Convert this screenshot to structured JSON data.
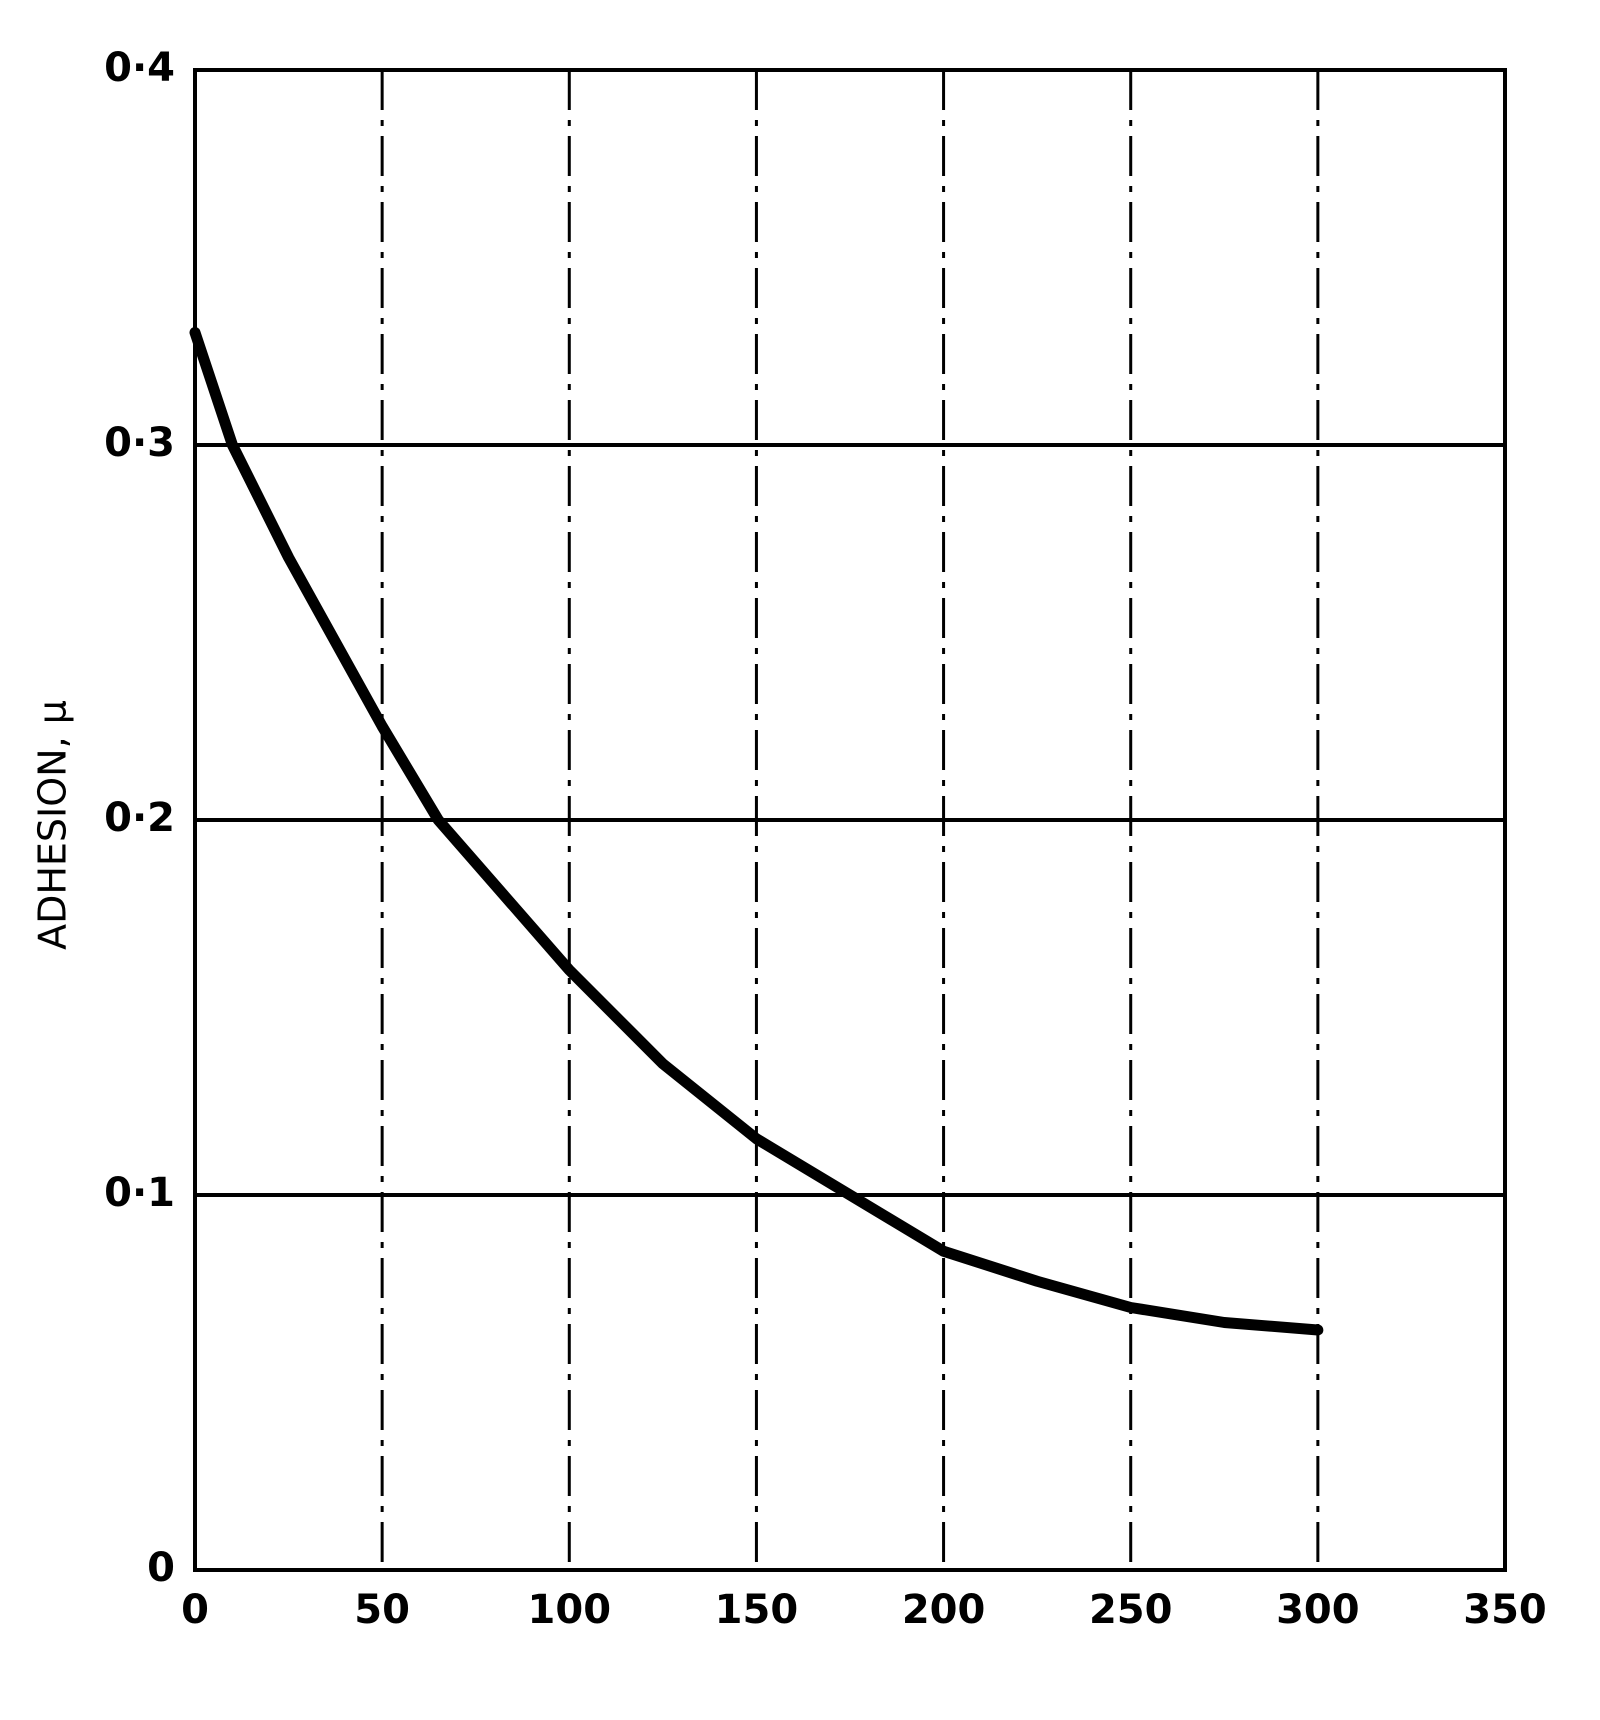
{
  "chart_data": {
    "type": "line",
    "y_label": "ADHESION, μ",
    "x": [
      0,
      10,
      25,
      50,
      65,
      100,
      125,
      150,
      175,
      200,
      225,
      250,
      275,
      300
    ],
    "series": [
      {
        "color": "#000000",
        "values": [
          0.33,
          0.3,
          0.27,
          0.225,
          0.2,
          0.16,
          0.135,
          0.115,
          0.1,
          0.085,
          0.077,
          0.07,
          0.066,
          0.064
        ]
      }
    ],
    "xlim": [
      0,
      350
    ],
    "xticks": [
      0,
      50,
      100,
      150,
      200,
      250,
      300,
      350
    ],
    "ylim": [
      0,
      0.4
    ],
    "yticks": [
      0,
      {
        "value": 0.1,
        "label": "0·1"
      },
      {
        "value": 0.2,
        "label": "0·2"
      },
      {
        "value": 0.3,
        "label": "0·3"
      },
      {
        "value": 0.4,
        "label": "0·4"
      }
    ],
    "grid": true
  }
}
